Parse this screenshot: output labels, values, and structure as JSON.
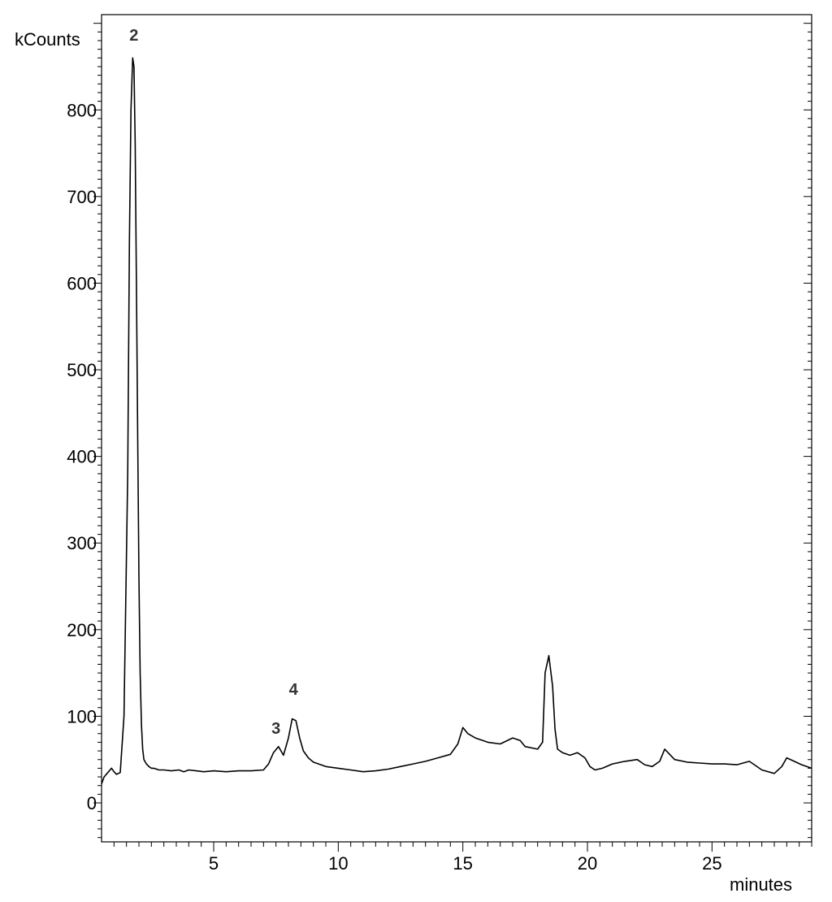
{
  "chart_data": {
    "type": "line",
    "title": "",
    "xlabel": "minutes",
    "ylabel": "kCounts",
    "xlim": [
      0.5,
      29
    ],
    "ylim": [
      -45,
      910
    ],
    "x_ticks": [
      5,
      10,
      15,
      20,
      25
    ],
    "y_ticks": [
      0,
      100,
      200,
      300,
      400,
      500,
      600,
      700,
      800
    ],
    "x_tick_labels": [
      "5",
      "10",
      "15",
      "20",
      "25"
    ],
    "y_tick_labels": [
      "0",
      "100",
      "200",
      "300",
      "400",
      "500",
      "600",
      "700",
      "800"
    ],
    "grid": false,
    "legend": "none",
    "line_color": "#000000",
    "series": [
      {
        "x": [
          0.5,
          0.6,
          0.75,
          0.9,
          1.0,
          1.1,
          1.25,
          1.4,
          1.55,
          1.62,
          1.68,
          1.75,
          1.8,
          1.85,
          1.9,
          1.95,
          2.0,
          2.05,
          2.1,
          2.15,
          2.2,
          2.3,
          2.4,
          2.5,
          2.6,
          2.8,
          3.0,
          3.3,
          3.6,
          3.8,
          4.0,
          4.3,
          4.6,
          5.0,
          5.5,
          6.0,
          6.5,
          7.0,
          7.2,
          7.4,
          7.6,
          7.8,
          8.0,
          8.15,
          8.3,
          8.45,
          8.6,
          8.8,
          9.0,
          9.5,
          10.0,
          10.5,
          11.0,
          11.5,
          12.0,
          12.5,
          13.0,
          13.5,
          14.0,
          14.5,
          14.8,
          15.0,
          15.2,
          15.5,
          15.8,
          16.0,
          16.5,
          17.0,
          17.3,
          17.5,
          18.0,
          18.2,
          18.3,
          18.45,
          18.6,
          18.7,
          18.8,
          18.9,
          19.0,
          19.3,
          19.6,
          19.9,
          20.1,
          20.3,
          20.6,
          21.0,
          21.5,
          22.0,
          22.3,
          22.6,
          22.9,
          23.1,
          23.5,
          24.0,
          24.5,
          25.0,
          25.5,
          26.0,
          26.5,
          27.0,
          27.5,
          27.8,
          28.0,
          28.3,
          28.6,
          29.0
        ],
        "y": [
          22,
          30,
          35,
          40,
          36,
          33,
          35,
          100,
          380,
          650,
          800,
          860,
          850,
          760,
          600,
          420,
          260,
          150,
          90,
          62,
          50,
          45,
          42,
          40,
          40,
          38,
          38,
          37,
          38,
          36,
          38,
          37,
          36,
          37,
          36,
          37,
          37,
          38,
          45,
          58,
          65,
          55,
          75,
          97,
          95,
          75,
          60,
          52,
          47,
          42,
          40,
          38,
          36,
          37,
          39,
          42,
          45,
          48,
          52,
          56,
          68,
          87,
          80,
          75,
          72,
          70,
          68,
          75,
          72,
          65,
          62,
          70,
          150,
          170,
          135,
          85,
          62,
          60,
          58,
          55,
          58,
          52,
          42,
          38,
          40,
          45,
          48,
          50,
          44,
          42,
          48,
          62,
          50,
          47,
          46,
          45,
          45,
          44,
          48,
          38,
          34,
          42,
          52,
          48,
          44,
          40
        ]
      }
    ],
    "annotations": [
      {
        "text": "2",
        "x": 1.8,
        "y": 880
      },
      {
        "text": "3",
        "x": 7.5,
        "y": 80
      },
      {
        "text": "4",
        "x": 8.2,
        "y": 125
      }
    ]
  }
}
